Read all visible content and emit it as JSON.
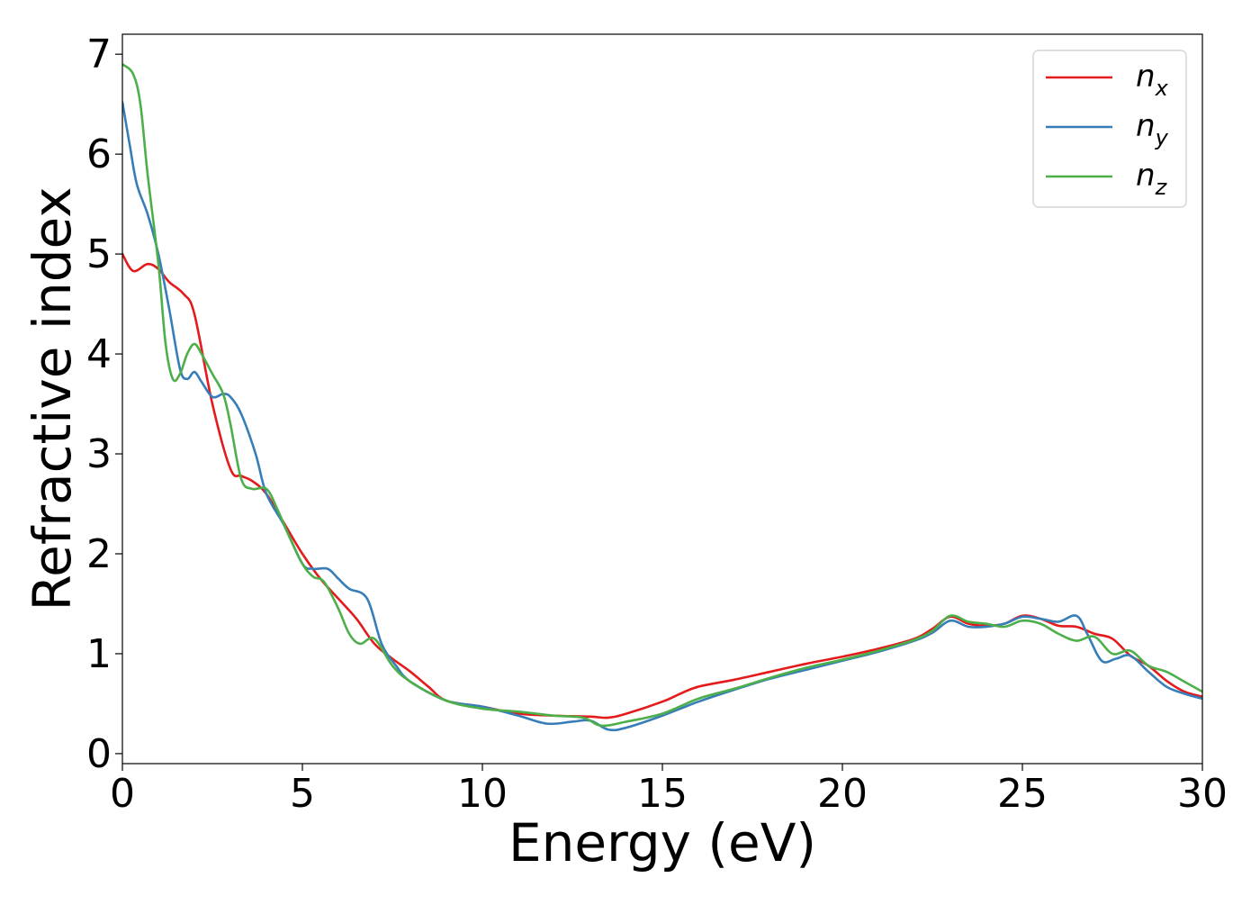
{
  "chart_data": {
    "type": "line",
    "title": "",
    "xlabel": "Energy (eV)",
    "ylabel": "Refractive index",
    "xlim": [
      0,
      30
    ],
    "ylim": [
      -0.1,
      7.2
    ],
    "xticks": [
      0,
      5,
      10,
      15,
      20,
      25,
      30
    ],
    "yticks": [
      0,
      1,
      2,
      3,
      4,
      5,
      6,
      7
    ],
    "grid": false,
    "legend_position": "top-right",
    "series": [
      {
        "name": "n_x",
        "label_main": "n",
        "label_sub": "x",
        "color": "#e41a1c",
        "x": [
          0,
          0.3,
          0.7,
          1.0,
          1.3,
          1.7,
          2.0,
          2.5,
          3.0,
          3.3,
          3.6,
          4.0,
          4.5,
          5.0,
          5.5,
          6.0,
          6.5,
          7.0,
          7.5,
          8.0,
          8.5,
          9.0,
          10.0,
          11.0,
          12.0,
          13.0,
          13.5,
          14.0,
          15.0,
          15.5,
          16.0,
          17.0,
          18.0,
          19.0,
          20.0,
          21.0,
          22.0,
          22.5,
          23.0,
          23.5,
          24.0,
          24.5,
          25.0,
          25.5,
          26.0,
          26.5,
          27.0,
          27.5,
          28.0,
          28.5,
          29.0,
          29.5,
          30.0
        ],
        "y": [
          5.0,
          4.83,
          4.9,
          4.85,
          4.72,
          4.6,
          4.4,
          3.5,
          2.85,
          2.78,
          2.73,
          2.6,
          2.3,
          2.0,
          1.75,
          1.55,
          1.35,
          1.1,
          0.95,
          0.82,
          0.67,
          0.53,
          0.47,
          0.4,
          0.38,
          0.37,
          0.36,
          0.4,
          0.52,
          0.6,
          0.67,
          0.74,
          0.82,
          0.9,
          0.97,
          1.05,
          1.15,
          1.25,
          1.37,
          1.3,
          1.28,
          1.3,
          1.38,
          1.35,
          1.28,
          1.27,
          1.2,
          1.15,
          0.98,
          0.88,
          0.73,
          0.62,
          0.57
        ]
      },
      {
        "name": "n_y",
        "label_main": "n",
        "label_sub": "y",
        "color": "#377eb8",
        "x": [
          0,
          0.2,
          0.4,
          0.7,
          1.0,
          1.3,
          1.6,
          1.8,
          2.0,
          2.2,
          2.5,
          2.8,
          3.0,
          3.3,
          3.7,
          4.0,
          4.5,
          5.0,
          5.3,
          5.7,
          6.0,
          6.3,
          6.8,
          7.2,
          7.6,
          8.0,
          9.0,
          10.0,
          11.0,
          11.8,
          12.5,
          13.0,
          13.5,
          14.0,
          15.0,
          16.0,
          17.0,
          18.0,
          19.0,
          20.0,
          21.0,
          22.0,
          22.5,
          23.0,
          23.5,
          24.0,
          24.5,
          25.0,
          25.5,
          26.0,
          26.5,
          26.8,
          27.2,
          27.6,
          28.0,
          28.5,
          29.0,
          29.5,
          30.0
        ],
        "y": [
          6.52,
          6.1,
          5.7,
          5.4,
          5.0,
          4.45,
          3.85,
          3.75,
          3.82,
          3.72,
          3.57,
          3.6,
          3.57,
          3.4,
          3.0,
          2.6,
          2.28,
          1.9,
          1.85,
          1.85,
          1.75,
          1.65,
          1.55,
          1.1,
          0.88,
          0.72,
          0.53,
          0.47,
          0.38,
          0.3,
          0.32,
          0.33,
          0.24,
          0.26,
          0.38,
          0.52,
          0.64,
          0.75,
          0.84,
          0.93,
          1.02,
          1.13,
          1.21,
          1.33,
          1.27,
          1.27,
          1.3,
          1.37,
          1.35,
          1.32,
          1.38,
          1.2,
          0.93,
          0.95,
          0.98,
          0.82,
          0.67,
          0.6,
          0.55
        ]
      },
      {
        "name": "n_z",
        "label_main": "n",
        "label_sub": "z",
        "color": "#4daf4a",
        "x": [
          0,
          0.3,
          0.5,
          0.7,
          1.0,
          1.2,
          1.4,
          1.6,
          1.8,
          2.0,
          2.2,
          2.5,
          2.8,
          3.0,
          3.3,
          3.6,
          4.0,
          4.3,
          4.6,
          5.0,
          5.3,
          5.6,
          6.0,
          6.3,
          6.6,
          7.0,
          7.5,
          8.0,
          9.0,
          10.0,
          11.0,
          12.0,
          12.8,
          13.3,
          14.0,
          15.0,
          16.0,
          17.0,
          18.0,
          19.0,
          20.0,
          21.0,
          22.0,
          22.5,
          23.0,
          23.5,
          24.0,
          24.5,
          25.0,
          25.5,
          26.0,
          26.5,
          27.0,
          27.5,
          28.0,
          28.5,
          29.0,
          29.5,
          30.0
        ],
        "y": [
          6.9,
          6.8,
          6.5,
          5.8,
          4.9,
          4.1,
          3.75,
          3.8,
          4.0,
          4.1,
          4.0,
          3.8,
          3.6,
          3.3,
          2.75,
          2.65,
          2.65,
          2.45,
          2.2,
          1.9,
          1.77,
          1.72,
          1.45,
          1.2,
          1.1,
          1.15,
          0.88,
          0.72,
          0.53,
          0.45,
          0.42,
          0.38,
          0.36,
          0.28,
          0.32,
          0.4,
          0.55,
          0.65,
          0.76,
          0.86,
          0.94,
          1.03,
          1.14,
          1.23,
          1.38,
          1.32,
          1.3,
          1.27,
          1.33,
          1.3,
          1.2,
          1.13,
          1.17,
          1.0,
          1.03,
          0.88,
          0.82,
          0.72,
          0.62
        ]
      }
    ]
  }
}
